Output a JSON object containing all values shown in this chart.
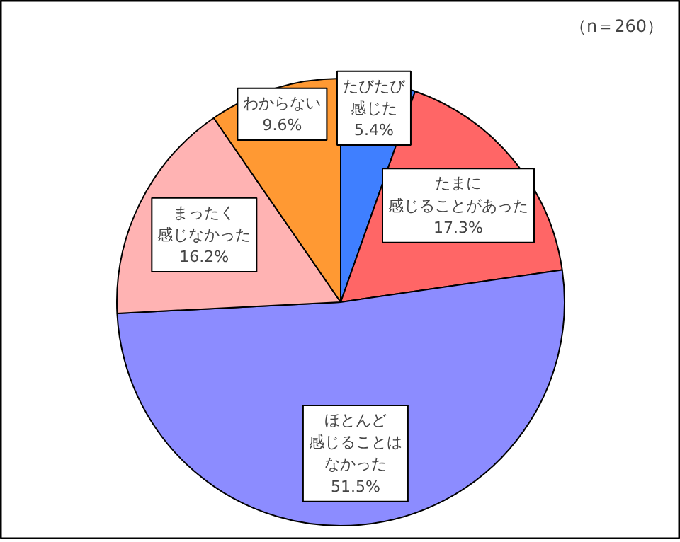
{
  "chart_data": {
    "type": "pie",
    "categories": [
      "たびたび感じた",
      "たまに感じることがあった",
      "ほとんど感じることはなかった",
      "まったく感じなかった",
      "わからない"
    ],
    "values": [
      5.4,
      17.3,
      51.5,
      16.2,
      9.6
    ],
    "colors": [
      "#3f7fff",
      "#ff6666",
      "#8c8cff",
      "#ffb3b3",
      "#ff9933"
    ],
    "value_labels": [
      "5.4%",
      "17.3%",
      "51.5%",
      "16.2%",
      "9.6%"
    ],
    "annotations": [
      "（n＝260）"
    ]
  }
}
